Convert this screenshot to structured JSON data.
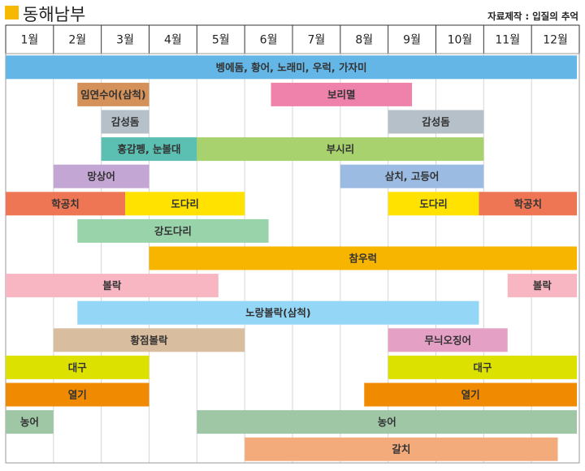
{
  "header": {
    "title": "동해남부",
    "source": "자료제작 : 입질의 추억",
    "swatch_color": "#f6b800"
  },
  "chart_data": {
    "type": "gantt",
    "title": "동해남부",
    "categories": [
      "1월",
      "2월",
      "3월",
      "4월",
      "5월",
      "6월",
      "7월",
      "8월",
      "9월",
      "10월",
      "11월",
      "12월"
    ],
    "rows": [
      {
        "bars": [
          {
            "label": "벵에돔, 황어, 노래미, 우럭, 가자미",
            "start": 1.0,
            "end": 12.95,
            "color": "#64b6e6"
          }
        ]
      },
      {
        "bars": [
          {
            "label": "임연수어(삼척)",
            "start": 2.5,
            "end": 4.0,
            "color": "#d4915a"
          },
          {
            "label": "보리멸",
            "start": 6.55,
            "end": 9.5,
            "color": "#ee82ab"
          }
        ]
      },
      {
        "bars": [
          {
            "label": "감성돔",
            "start": 3.0,
            "end": 4.0,
            "color": "#b5c0c8"
          },
          {
            "label": "감성돔",
            "start": 9.0,
            "end": 11.0,
            "color": "#b5c0c8"
          }
        ]
      },
      {
        "bars": [
          {
            "label": "홍감펭, 눈볼대",
            "start": 3.0,
            "end": 5.0,
            "color": "#5bbfb2"
          },
          {
            "label": "부시리",
            "start": 5.0,
            "end": 11.0,
            "color": "#a7d26e"
          }
        ]
      },
      {
        "bars": [
          {
            "label": "망상어",
            "start": 2.0,
            "end": 4.0,
            "color": "#c3a6d4"
          },
          {
            "label": "삼치, 고등어",
            "start": 8.0,
            "end": 11.0,
            "color": "#9cbbe3"
          }
        ]
      },
      {
        "bars": [
          {
            "label": "학공치",
            "start": 1.0,
            "end": 3.5,
            "color": "#ee7654"
          },
          {
            "label": "도다리",
            "start": 3.5,
            "end": 6.0,
            "color": "#ffe200"
          },
          {
            "label": "도다리",
            "start": 9.0,
            "end": 10.9,
            "color": "#ffe200"
          },
          {
            "label": "학공치",
            "start": 10.9,
            "end": 12.95,
            "color": "#ee7654"
          }
        ]
      },
      {
        "bars": [
          {
            "label": "강도다리",
            "start": 2.5,
            "end": 6.5,
            "color": "#98d3aa"
          }
        ]
      },
      {
        "bars": [
          {
            "label": "참우럭",
            "start": 4.0,
            "end": 12.95,
            "color": "#f8b500"
          }
        ]
      },
      {
        "bars": [
          {
            "label": "볼락",
            "start": 1.0,
            "end": 5.45,
            "color": "#f7b6c2"
          },
          {
            "label": "볼락",
            "start": 11.5,
            "end": 12.95,
            "color": "#f7b6c2"
          }
        ]
      },
      {
        "bars": [
          {
            "label": "노랑볼락(삼척)",
            "start": 2.5,
            "end": 10.9,
            "color": "#94d6f6"
          }
        ]
      },
      {
        "bars": [
          {
            "label": "황점볼락",
            "start": 2.0,
            "end": 6.0,
            "color": "#d8bd9e"
          },
          {
            "label": "무늬오징어",
            "start": 9.0,
            "end": 11.5,
            "color": "#e5a0c6"
          }
        ]
      },
      {
        "bars": [
          {
            "label": "대구",
            "start": 1.0,
            "end": 4.0,
            "color": "#dde100"
          },
          {
            "label": "대구",
            "start": 9.0,
            "end": 12.95,
            "color": "#dde100"
          }
        ]
      },
      {
        "bars": [
          {
            "label": "열기",
            "start": 1.0,
            "end": 4.0,
            "color": "#f08a00"
          },
          {
            "label": "열기",
            "start": 8.5,
            "end": 12.95,
            "color": "#f08a00"
          }
        ]
      },
      {
        "bars": [
          {
            "label": "농어",
            "start": 1.0,
            "end": 2.0,
            "color": "#9fc7a6"
          },
          {
            "label": "농어",
            "start": 5.0,
            "end": 12.95,
            "color": "#9fc7a6"
          }
        ]
      },
      {
        "bars": [
          {
            "label": "갈치",
            "start": 6.0,
            "end": 12.55,
            "color": "#f4ab7c"
          }
        ]
      }
    ]
  }
}
